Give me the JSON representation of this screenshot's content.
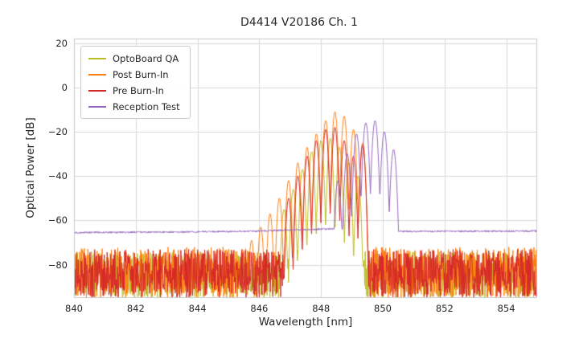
{
  "figure": {
    "background": "#ffffff"
  },
  "chart_data": {
    "type": "line",
    "title": "D4414 V20186 Ch. 1",
    "xlabel": "Wavelength [nm]",
    "ylabel": "Optical Power [dB]",
    "xlim": [
      840,
      855
    ],
    "ylim": [
      -95,
      22
    ],
    "xticks": [
      840,
      842,
      844,
      846,
      848,
      850,
      852,
      854
    ],
    "yticks": [
      20,
      0,
      -20,
      -40,
      -60,
      -80
    ],
    "grid": true,
    "grid_color": "#d9d9d9",
    "frame_color": "#c8c8c8",
    "legend_position": "upper left",
    "mode_spacing_nm": 0.3,
    "series": [
      {
        "name": "OptoBoard QA",
        "color": "#bcbd22",
        "noise_range_db": [
          -95,
          -74
        ],
        "fringe_width_nm": 0.15,
        "fringe_depth_db": 40,
        "peaks": [
          [
            846.8,
            -55
          ],
          [
            847.1,
            -46
          ],
          [
            847.4,
            -37
          ],
          [
            847.7,
            -29
          ],
          [
            848.0,
            -24
          ],
          [
            848.3,
            -23
          ],
          [
            848.6,
            -27
          ],
          [
            848.9,
            -34
          ],
          [
            849.2,
            -40
          ]
        ]
      },
      {
        "name": "Post Burn-In",
        "color": "#ff7f0e",
        "noise_range_db": [
          -95,
          -72
        ],
        "fringe_width_nm": 0.15,
        "fringe_depth_db": 40,
        "peaks": [
          [
            845.45,
            -73
          ],
          [
            845.75,
            -69
          ],
          [
            846.05,
            -63
          ],
          [
            846.35,
            -57
          ],
          [
            846.65,
            -50
          ],
          [
            846.95,
            -42
          ],
          [
            847.25,
            -34
          ],
          [
            847.55,
            -27
          ],
          [
            847.85,
            -21
          ],
          [
            848.15,
            -15
          ],
          [
            848.45,
            -11
          ],
          [
            848.75,
            -13
          ],
          [
            849.05,
            -19
          ],
          [
            849.35,
            -25
          ]
        ]
      },
      {
        "name": "Pre Burn-In",
        "color": "#d62728",
        "noise_range_db": [
          -95,
          -73
        ],
        "fringe_width_nm": 0.15,
        "fringe_depth_db": 40,
        "peaks": [
          [
            846.95,
            -50
          ],
          [
            847.25,
            -40
          ],
          [
            847.55,
            -31
          ],
          [
            847.85,
            -24
          ],
          [
            848.15,
            -19
          ],
          [
            848.45,
            -18
          ],
          [
            848.75,
            -24
          ],
          [
            849.05,
            -31
          ],
          [
            849.35,
            -26
          ]
        ]
      },
      {
        "name": "Reception Test",
        "color": "#9467bd",
        "baseline_points": [
          [
            840,
            -65.5
          ],
          [
            844,
            -65.2
          ],
          [
            846,
            -64.8
          ],
          [
            847.5,
            -64.2
          ],
          [
            848.4,
            -63.8
          ],
          [
            850.7,
            -65.0
          ],
          [
            855,
            -64.8
          ]
        ],
        "baseline_jitter_db": 0.8,
        "fringe_width_nm": 0.15,
        "fringe_depth_db": 33,
        "peaks": [
          [
            848.55,
            -42
          ],
          [
            848.85,
            -30
          ],
          [
            849.15,
            -21
          ],
          [
            849.45,
            -16
          ],
          [
            849.75,
            -15
          ],
          [
            850.05,
            -20
          ],
          [
            850.35,
            -28
          ]
        ]
      }
    ]
  }
}
